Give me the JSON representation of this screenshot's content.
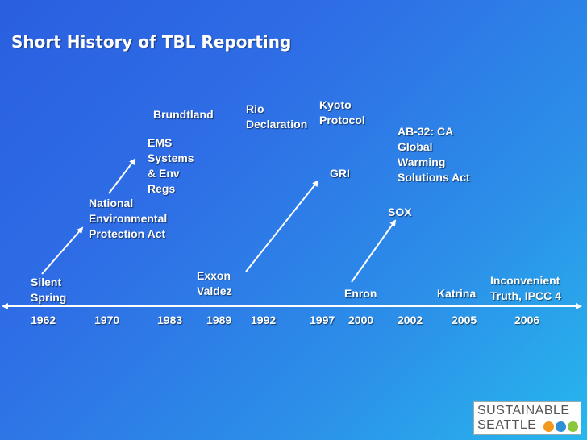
{
  "title": "Short History of TBL Reporting",
  "events": {
    "silent_spring": "Silent\nSpring",
    "nepa": "National\nEnvironmental\nProtection Act",
    "ems": "EMS\nSystems\n& Env\nRegs",
    "brundtland": "Brundtland",
    "exxon": "Exxon\nValdez",
    "rio": "Rio\nDeclaration",
    "kyoto": "Kyoto\nProtocol",
    "gri": "GRI",
    "enron": "Enron",
    "sox": "SOX",
    "ab32": "AB-32: CA\nGlobal\nWarming\nSolutions Act",
    "katrina": "Katrina",
    "inconvenient": "Inconvenient\nTruth, IPCC 4"
  },
  "years": [
    "1962",
    "1970",
    "1983",
    "1989",
    "1992",
    "1997",
    "2000",
    "2002",
    "2005",
    "2006"
  ],
  "logo": {
    "line1": "SUSTAINABLE",
    "line2": "SEATTLE",
    "dot_colors": [
      "#f39a1e",
      "#2f8fd6",
      "#8cc63f"
    ]
  },
  "colors": {
    "text": "#ffffff",
    "background_start": "#2a5fe0",
    "background_end": "#27b7ee"
  }
}
